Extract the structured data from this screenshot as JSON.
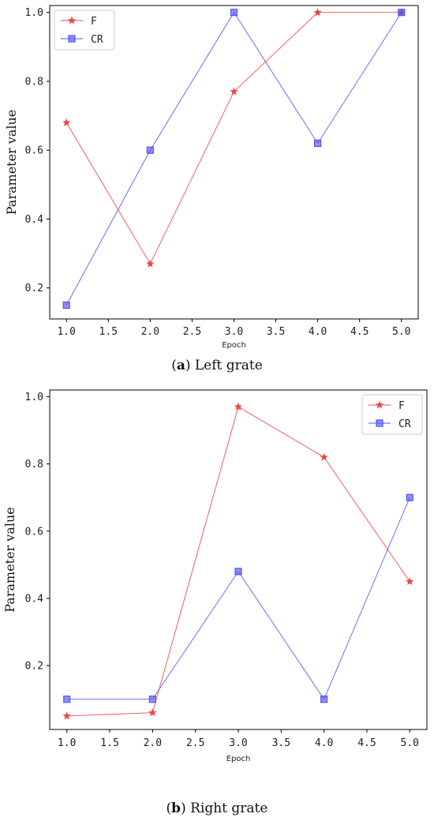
{
  "colors": {
    "F": "#ef4444",
    "CR": "#5555ee",
    "frame": "#000000"
  },
  "icons": {
    "F": "star-marker",
    "CR": "square-marker"
  },
  "chart_data": [
    {
      "type": "line",
      "caption_letter": "a",
      "caption_text": "Left grate",
      "xlabel": "Epoch",
      "ylabel": "Parameter value",
      "x": [
        1,
        2,
        3,
        4,
        5
      ],
      "xlim": [
        0.8,
        5.2
      ],
      "ylim": [
        0.11,
        1.02
      ],
      "xticks": [
        "1.0",
        "1.5",
        "2.0",
        "2.5",
        "3.0",
        "3.5",
        "4.0",
        "4.5",
        "5.0"
      ],
      "xtick_values": [
        1.0,
        1.5,
        2.0,
        2.5,
        3.0,
        3.5,
        4.0,
        4.5,
        5.0
      ],
      "yticks": [
        "0.2",
        "0.4",
        "0.6",
        "0.8",
        "1.0"
      ],
      "ytick_values": [
        0.2,
        0.4,
        0.6,
        0.8,
        1.0
      ],
      "legend_position": "top-left",
      "grid": false,
      "series": [
        {
          "name": "F",
          "marker": "star",
          "values": [
            0.68,
            0.27,
            0.77,
            1.0,
            1.0
          ]
        },
        {
          "name": "CR",
          "marker": "square",
          "values": [
            0.15,
            0.6,
            1.0,
            0.62,
            1.0
          ]
        }
      ]
    },
    {
      "type": "line",
      "caption_letter": "b",
      "caption_text": "Right grate",
      "xlabel": "Epoch",
      "ylabel": "Parameter value",
      "x": [
        1,
        2,
        3,
        4,
        5
      ],
      "xlim": [
        0.8,
        5.2
      ],
      "ylim": [
        0.01,
        1.02
      ],
      "xticks": [
        "1.0",
        "1.5",
        "2.0",
        "2.5",
        "3.0",
        "3.5",
        "4.0",
        "4.5",
        "5.0"
      ],
      "xtick_values": [
        1.0,
        1.5,
        2.0,
        2.5,
        3.0,
        3.5,
        4.0,
        4.5,
        5.0
      ],
      "yticks": [
        "0.2",
        "0.4",
        "0.6",
        "0.8",
        "1.0"
      ],
      "ytick_values": [
        0.2,
        0.4,
        0.6,
        0.8,
        1.0
      ],
      "legend_position": "top-right",
      "grid": false,
      "series": [
        {
          "name": "F",
          "marker": "star",
          "values": [
            0.05,
            0.06,
            0.97,
            0.82,
            0.45
          ]
        },
        {
          "name": "CR",
          "marker": "square",
          "values": [
            0.1,
            0.1,
            0.48,
            0.1,
            0.7
          ]
        }
      ]
    }
  ]
}
